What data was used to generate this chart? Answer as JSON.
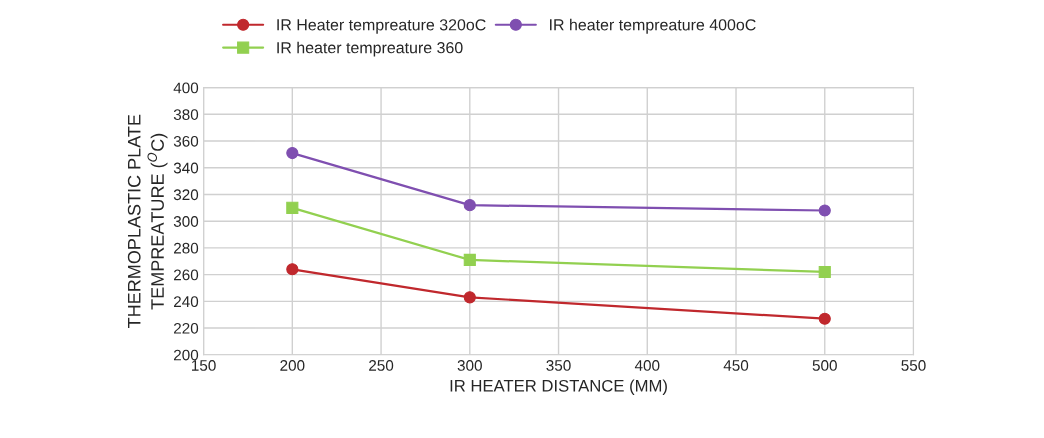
{
  "chart_data": {
    "type": "line",
    "xlabel": "IR HEATER DISTANCE (MM)",
    "ylabel": "THERMOPLASTIC PLATE\nTEMPREATURE ($^{O}$C)",
    "x": [
      200,
      300,
      500
    ],
    "series": [
      {
        "name": "IR Heater tempreature 320oC",
        "color": "#c0282d",
        "marker": "circle",
        "values": [
          264,
          243,
          227
        ]
      },
      {
        "name": "IR heater tempreature 360",
        "color": "#92d050",
        "marker": "square",
        "values": [
          310,
          271,
          262
        ]
      },
      {
        "name": "IR heater tempreature 400oC",
        "color": "#7f4fb0",
        "marker": "circle",
        "values": [
          351,
          312,
          308
        ]
      }
    ],
    "xlim": [
      150,
      550
    ],
    "xticks": [
      150,
      200,
      250,
      300,
      350,
      400,
      450,
      500,
      550
    ],
    "ylim": [
      200,
      400
    ],
    "yticks": [
      200,
      220,
      240,
      260,
      280,
      300,
      320,
      340,
      360,
      380,
      400
    ],
    "grid": true,
    "legend": "top"
  }
}
